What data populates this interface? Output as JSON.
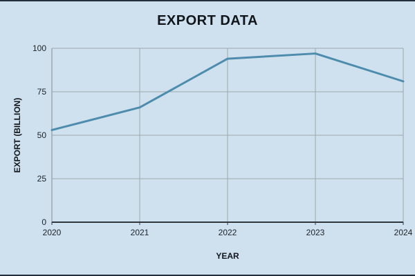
{
  "page": {
    "background": "#cfe0ee",
    "edge_border_color": "#222e3a"
  },
  "chart_data": {
    "type": "line",
    "title": "EXPORT DATA",
    "xlabel": "YEAR",
    "ylabel": "EXPORT (BILLION)",
    "categories": [
      "2020",
      "2021",
      "2022",
      "2023",
      "2024"
    ],
    "series": [
      {
        "name": "Export",
        "values": [
          53,
          66,
          94,
          97,
          81
        ]
      }
    ],
    "ylim": [
      0,
      100
    ],
    "yticks": [
      0,
      25,
      50,
      75,
      100
    ],
    "grid": true,
    "legend": "none",
    "line_color": "#4d8cac",
    "grid_color": "#9da7af",
    "axis_color": "#2e353c",
    "background_color": "#cfe0ee",
    "text_color": "#1b2228"
  }
}
